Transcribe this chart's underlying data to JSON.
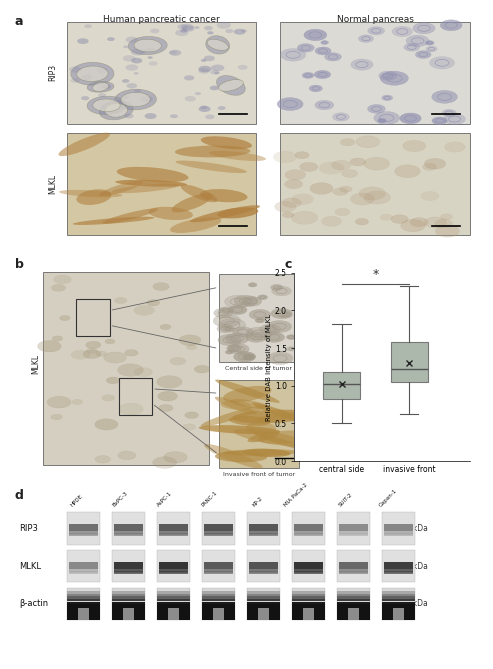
{
  "panel_a_title1": "Human pancreatic cancer",
  "panel_a_title2": "Normal pancreas",
  "panel_a_row1": "RIP3",
  "panel_a_row2": "MLKL",
  "panel_b_label": "MLKL",
  "panel_b_caption1": "Central side of tumor",
  "panel_b_caption2": "Invasive front of tumor",
  "panel_c_ylabel": "Relative DAB Intensity of MLKL",
  "panel_c_xlabels": [
    "central side",
    "invasive front"
  ],
  "panel_c_sig": "*",
  "panel_c_ylim": [
    0,
    2.5
  ],
  "panel_c_yticks": [
    0,
    0.5,
    1,
    1.5,
    2,
    2.5
  ],
  "panel_c_box1": {
    "median": 1.02,
    "q1": 0.82,
    "q3": 1.18,
    "whislo": 0.5,
    "whishi": 1.82,
    "mean": 1.02
  },
  "panel_c_box2": {
    "median": 1.22,
    "q1": 1.05,
    "q3": 1.58,
    "whislo": 0.62,
    "whishi": 2.32,
    "mean": 1.3
  },
  "panel_d_bands": [
    "RIP3",
    "MLKL",
    "β-actin"
  ],
  "panel_d_sizes": [
    "57kDa",
    "46kDa",
    "42kDa"
  ],
  "panel_d_samples": [
    "HPDE",
    "BxPC-3",
    "AsPC-1",
    "PANC-1",
    "KP-2",
    "MIA PaCa-2",
    "SUIT-2",
    "Capan-1"
  ],
  "bg_color": "#ffffff",
  "box_face_color": "#adb8ad",
  "box_edge_color": "#777777",
  "img_rip3_cancer": "#dcd8cc",
  "img_rip3_normal": "#dcdad4",
  "img_mlkl_cancer": "#d4c8a4",
  "img_mlkl_normal": "#d8d4c4",
  "img_b_large": "#d4cfc0",
  "img_b_inset1": "#d8d4cc",
  "img_b_inset2": "#d0c4a0"
}
